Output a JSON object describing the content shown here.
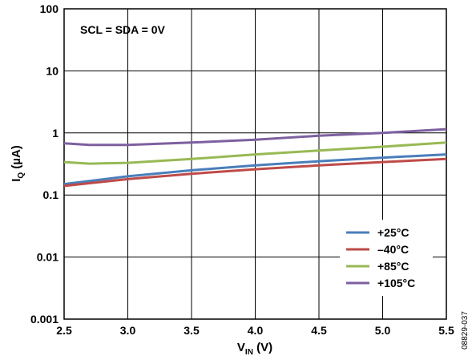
{
  "figure_id": "08829-037",
  "chart_data": {
    "type": "line",
    "title": "",
    "xlabel": "V",
    "xlabel_sub": "IN",
    "xlabel_unit": " (V)",
    "ylabel": "I",
    "ylabel_sub": "Q",
    "ylabel_unit": " (µA)",
    "xlim": [
      2.5,
      5.5
    ],
    "ylim": [
      0.001,
      100
    ],
    "yscale": "log",
    "grid": true,
    "x_ticks": [
      "2.5",
      "3.0",
      "3.5",
      "4.0",
      "4.5",
      "5.0",
      "5.5"
    ],
    "x_tick_values": [
      2.5,
      3.0,
      3.5,
      4.0,
      4.5,
      5.0,
      5.5
    ],
    "y_ticks": [
      "100",
      "10",
      "1",
      "0.1",
      "0.01",
      "0.001"
    ],
    "y_tick_values": [
      100,
      10,
      1,
      0.1,
      0.01,
      0.001
    ],
    "annotation": "SCL = SDA = 0V",
    "legend_position": "lower-right",
    "series": [
      {
        "name": "+25°C",
        "color": "#4a7ebb",
        "x": [
          2.5,
          3.0,
          3.5,
          4.0,
          4.5,
          5.0,
          5.5
        ],
        "y": [
          0.15,
          0.2,
          0.25,
          0.3,
          0.35,
          0.4,
          0.45
        ]
      },
      {
        "name": "–40°C",
        "color": "#be4b48",
        "x": [
          2.5,
          3.0,
          3.5,
          4.0,
          4.5,
          5.0,
          5.5
        ],
        "y": [
          0.14,
          0.18,
          0.22,
          0.26,
          0.3,
          0.34,
          0.38
        ]
      },
      {
        "name": "+85°C",
        "color": "#98b954",
        "x": [
          2.5,
          2.7,
          3.0,
          3.5,
          4.0,
          4.5,
          5.0,
          5.5
        ],
        "y": [
          0.34,
          0.32,
          0.33,
          0.38,
          0.45,
          0.52,
          0.6,
          0.7
        ]
      },
      {
        "name": "+105°C",
        "color": "#7d60a0",
        "x": [
          2.5,
          2.7,
          3.0,
          3.5,
          4.0,
          4.5,
          5.0,
          5.5
        ],
        "y": [
          0.68,
          0.64,
          0.64,
          0.7,
          0.78,
          0.9,
          1.0,
          1.15
        ]
      }
    ]
  }
}
